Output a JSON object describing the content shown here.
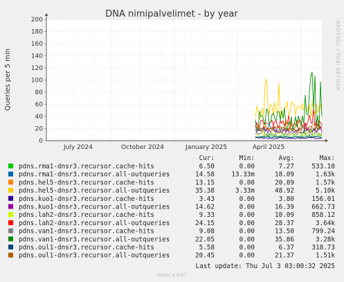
{
  "watermark": "RRDTOOL / TOBI OETIKER",
  "footer": "Munin 2.0.67",
  "last_update": "Last update:  Thu Jul  3 03:00:32 2025",
  "stat_headers": [
    "Cur:",
    "Min:",
    "Avg:",
    "Max:"
  ],
  "chart_data": {
    "type": "line",
    "title": "DNA nimipalvelimet - by year",
    "ylabel": "Queries per 5 min",
    "xlabel": "",
    "ylim": [
      0,
      200
    ],
    "yticks": [
      "0",
      "20",
      "40",
      "60",
      "80",
      "100",
      "120",
      "140",
      "160",
      "180",
      "200"
    ],
    "xticks": [
      "July 2024",
      "October 2024",
      "January 2025",
      "April 2025"
    ],
    "grid": true,
    "data_starts": "2025-03",
    "series": [
      {
        "name": "pdns.rma1-dnsr3.recursor.cache-hits",
        "color": "#00cc00",
        "cur": "6.50",
        "min": "0.00",
        "avg": "7.27",
        "max": "533.10",
        "base": 7,
        "amp": 6
      },
      {
        "name": "pdns.rma1-dnsr3.recursor.all-outqueries",
        "color": "#0066b3",
        "cur": "14.58",
        "min": "13.33m",
        "avg": "18.09",
        "max": "1.63k",
        "base": 18,
        "amp": 8
      },
      {
        "name": "pdns.hel5-dnsr3.recursor.cache-hits",
        "color": "#ff8000",
        "cur": "13.15",
        "min": "0.00",
        "avg": "20.89",
        "max": "1.57k",
        "base": 21,
        "amp": 12
      },
      {
        "name": "pdns.hel5-dnsr3.recursor.all-outqueries",
        "color": "#ffcc00",
        "cur": "35.38",
        "min": "3.33m",
        "avg": "48.92",
        "max": "5.10k",
        "base": 50,
        "amp": 30
      },
      {
        "name": "pdns.kuo1-dnsr3.recursor.cache-hits",
        "color": "#330099",
        "cur": "3.43",
        "min": "0.00",
        "avg": "3.80",
        "max": "156.01",
        "base": 4,
        "amp": 2
      },
      {
        "name": "pdns.kuo1-dnsr3.recursor.all-outqueries",
        "color": "#990099",
        "cur": "14.62",
        "min": "0.00",
        "avg": "16.39",
        "max": "662.73",
        "base": 16,
        "amp": 6
      },
      {
        "name": "pdns.lah2-dnsr3.recursor.cache-hits",
        "color": "#ccff00",
        "cur": "9.33",
        "min": "0.00",
        "avg": "10.09",
        "max": "858.12",
        "base": 10,
        "amp": 5
      },
      {
        "name": "pdns.lah2-dnsr3.recursor.all-outqueries",
        "color": "#ff0000",
        "cur": "24.15",
        "min": "0.00",
        "avg": "28.37",
        "max": "3.64k",
        "base": 28,
        "amp": 14
      },
      {
        "name": "pdns.van1-dnsr3.recursor.cache-hits",
        "color": "#808080",
        "cur": "9.08",
        "min": "0.00",
        "avg": "13.50",
        "max": "799.24",
        "base": 12,
        "amp": 6
      },
      {
        "name": "pdns.van1-dnsr3.recursor.all-outqueries",
        "color": "#008f00",
        "cur": "22.05",
        "min": "0.00",
        "avg": "35.86",
        "max": "3.28k",
        "base": 35,
        "amp": 40
      },
      {
        "name": "pdns.oul1-dnsr3.recursor.cache-hits",
        "color": "#00487d",
        "cur": "5.58",
        "min": "0.00",
        "avg": "6.37",
        "max": "318.73",
        "base": 6,
        "amp": 3
      },
      {
        "name": "pdns.oul1-dnsr3.recursor.all-outqueries",
        "color": "#b35a00",
        "cur": "20.45",
        "min": "0.00",
        "avg": "21.37",
        "max": "1.51k",
        "base": 20,
        "amp": 8
      }
    ]
  }
}
